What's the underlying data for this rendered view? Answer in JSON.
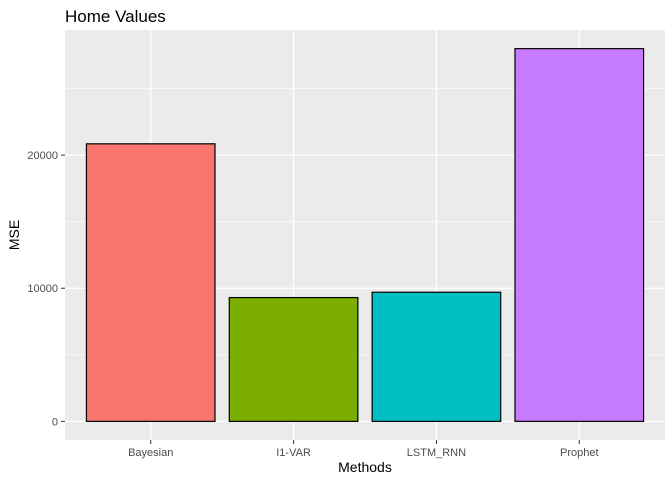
{
  "chart_data": {
    "type": "bar",
    "title": "Home Values",
    "xlabel": "Methods",
    "ylabel": "MSE",
    "categories": [
      "Bayesian",
      "I1-VAR",
      "LSTM_RNN",
      "Prophet"
    ],
    "values": [
      20850,
      9300,
      9700,
      28000
    ],
    "colors": [
      "#F8766D",
      "#7CAE00",
      "#00BFC4",
      "#C77CFF"
    ],
    "y_ticks": [
      0,
      10000,
      20000
    ],
    "y_tick_labels": [
      "0",
      "10000",
      "20000"
    ],
    "ylim": [
      -1400,
      29400
    ],
    "grid": true,
    "legend": "none",
    "panel_background": "#EBEBEB",
    "bar_outline": "#000000"
  }
}
